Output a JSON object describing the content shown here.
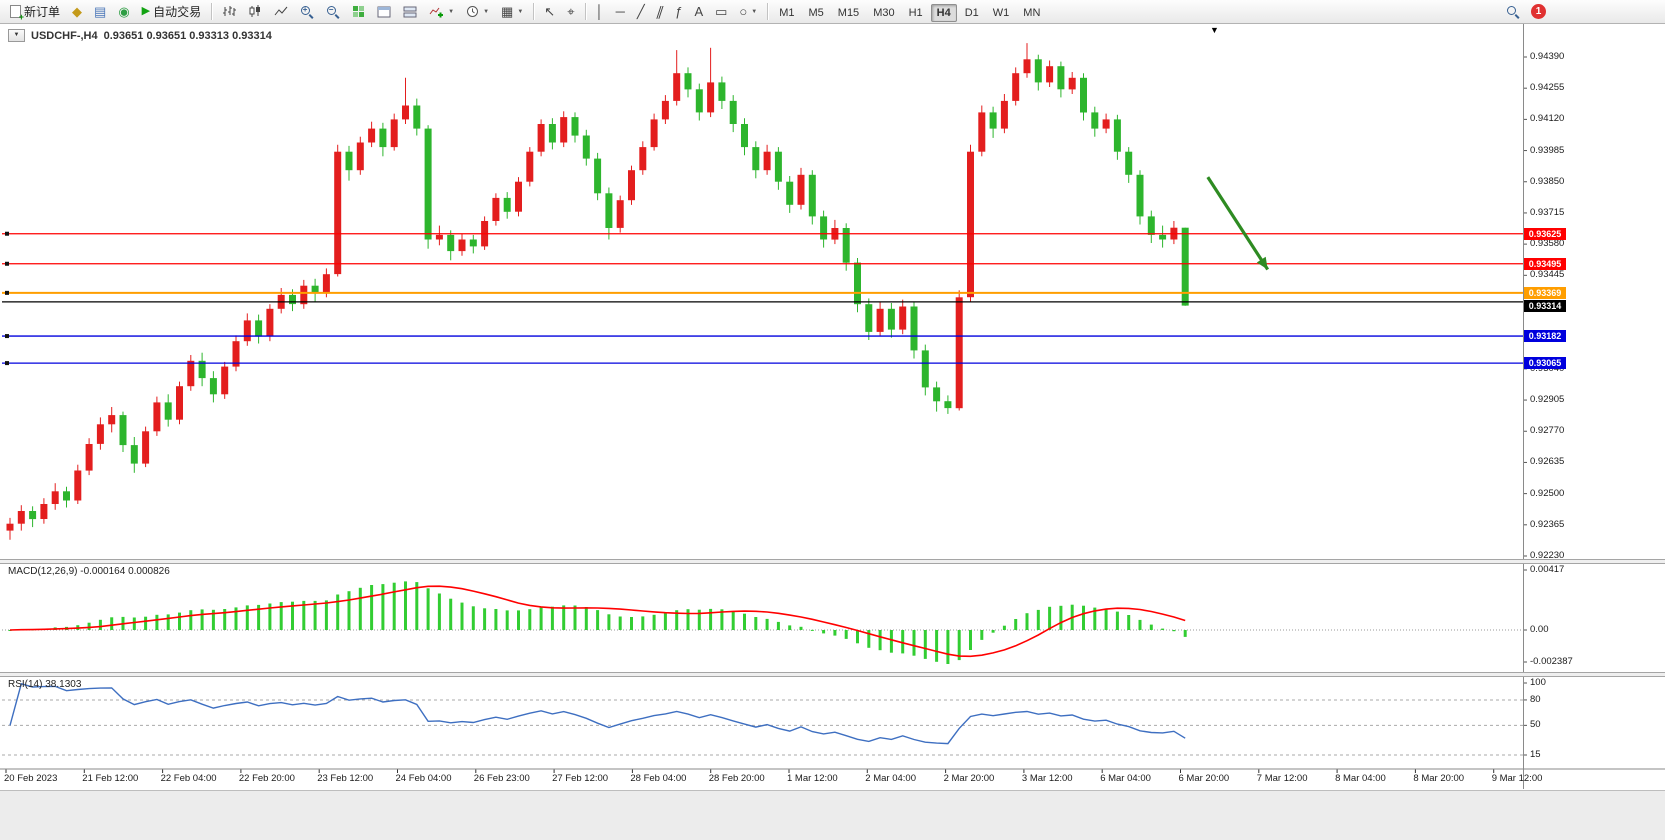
{
  "toolbar": {
    "new_order_label": "新订单",
    "auto_trading_label": "自动交易",
    "timeframes": [
      "M1",
      "M5",
      "M15",
      "M30",
      "H1",
      "H4",
      "D1",
      "W1",
      "MN"
    ],
    "active_timeframe": "H4",
    "notification_count": "1"
  },
  "chart": {
    "symbol_title": "USDCHF-,H4",
    "ohlc_text": "0.93651 0.93651 0.93313 0.93314",
    "bid": {
      "price": 0.93314,
      "label": "0.93314",
      "color": "#000000"
    },
    "hlines": [
      {
        "price": 0.93625,
        "label": "0.93625",
        "color": "#ff0000"
      },
      {
        "price": 0.93495,
        "label": "0.93495",
        "color": "#ff0000"
      },
      {
        "price": 0.93369,
        "label": "0.93369",
        "color": "#ff9e00"
      },
      {
        "price": 0.9333,
        "label": "",
        "color": "#000000"
      },
      {
        "price": 0.93182,
        "label": "0.93182",
        "color": "#0000dd"
      },
      {
        "price": 0.93065,
        "label": "0.93065",
        "color": "#0000dd"
      }
    ],
    "price_ticks": [
      "0.94390",
      "0.94255",
      "0.94120",
      "0.93985",
      "0.93850",
      "0.93715",
      "0.93580",
      "0.93445",
      "0.93310",
      "0.93175",
      "0.93040",
      "0.92905",
      "0.92770",
      "0.92635",
      "0.92500",
      "0.92365",
      "0.92230"
    ],
    "time_ticks": [
      "20 Feb 2023",
      "21 Feb 12:00",
      "22 Feb 04:00",
      "22 Feb 20:00",
      "23 Feb 12:00",
      "24 Feb 04:00",
      "26 Feb 23:00",
      "27 Feb 12:00",
      "28 Feb 04:00",
      "28 Feb 20:00",
      "1 Mar 12:00",
      "2 Mar 04:00",
      "2 Mar 20:00",
      "3 Mar 12:00",
      "6 Mar 04:00",
      "6 Mar 20:00",
      "7 Mar 12:00",
      "8 Mar 04:00",
      "8 Mar 20:00",
      "9 Mar 12:00"
    ],
    "arrow": {
      "from_bar": 106,
      "from_price": 0.9387,
      "to_bar": 111.3,
      "to_price": 0.9347,
      "color": "#2e8b22"
    }
  },
  "macd": {
    "label_text": "MACD(12,26,9)",
    "values_text": "-0.000164 0.000826",
    "axis_labels": [
      "0.00417",
      "0.00",
      "-0.002387"
    ],
    "histogram_color": "#32cd32",
    "signal_color": "#ff0000",
    "fast": 12,
    "slow": 26,
    "signal": 9
  },
  "rsi": {
    "label_text": "RSI(14)",
    "value_text": "38.1303",
    "axis_labels": [
      "100",
      "80",
      "50",
      "15"
    ],
    "levels": [
      80,
      50,
      15
    ],
    "line_color": "#3e6fc1",
    "period": 14
  },
  "chart_data": {
    "type": "candlestick",
    "symbol": "USDCHF",
    "timeframe": "H4",
    "up_color": "#e31e1e",
    "down_color": "#2db52d",
    "price_range": [
      0.9223,
      0.9439
    ],
    "candles": [
      [
        0.9234,
        0.92395,
        0.923,
        0.9237
      ],
      [
        0.9237,
        0.9245,
        0.9234,
        0.92425
      ],
      [
        0.92425,
        0.92445,
        0.92355,
        0.9239
      ],
      [
        0.9239,
        0.9248,
        0.9237,
        0.92455
      ],
      [
        0.92455,
        0.92545,
        0.9243,
        0.9251
      ],
      [
        0.9251,
        0.9253,
        0.9244,
        0.9247
      ],
      [
        0.9247,
        0.92625,
        0.92455,
        0.926
      ],
      [
        0.926,
        0.9274,
        0.9258,
        0.92715
      ],
      [
        0.92715,
        0.9283,
        0.9269,
        0.928
      ],
      [
        0.928,
        0.92875,
        0.92765,
        0.9284
      ],
      [
        0.9284,
        0.92855,
        0.9268,
        0.9271
      ],
      [
        0.9271,
        0.92745,
        0.9259,
        0.9263
      ],
      [
        0.9263,
        0.9279,
        0.92615,
        0.9277
      ],
      [
        0.9277,
        0.9292,
        0.9275,
        0.92895
      ],
      [
        0.92895,
        0.9293,
        0.9279,
        0.9282
      ],
      [
        0.9282,
        0.92985,
        0.928,
        0.92965
      ],
      [
        0.92965,
        0.931,
        0.92945,
        0.93075
      ],
      [
        0.93075,
        0.9311,
        0.92965,
        0.93
      ],
      [
        0.93,
        0.9303,
        0.92895,
        0.9293
      ],
      [
        0.9293,
        0.9307,
        0.9291,
        0.9305
      ],
      [
        0.9305,
        0.93185,
        0.9303,
        0.9316
      ],
      [
        0.9316,
        0.9328,
        0.9314,
        0.9325
      ],
      [
        0.9325,
        0.93275,
        0.9315,
        0.9318
      ],
      [
        0.9318,
        0.9332,
        0.9316,
        0.933
      ],
      [
        0.933,
        0.9339,
        0.9328,
        0.9336
      ],
      [
        0.9336,
        0.93385,
        0.9329,
        0.9332
      ],
      [
        0.9332,
        0.93425,
        0.933,
        0.934
      ],
      [
        0.934,
        0.9343,
        0.9333,
        0.9337
      ],
      [
        0.9337,
        0.93475,
        0.9335,
        0.9345
      ],
      [
        0.9345,
        0.9401,
        0.9344,
        0.9398
      ],
      [
        0.9398,
        0.94005,
        0.93855,
        0.939
      ],
      [
        0.939,
        0.94045,
        0.9388,
        0.9402
      ],
      [
        0.9402,
        0.9411,
        0.94,
        0.9408
      ],
      [
        0.9408,
        0.94105,
        0.9396,
        0.94
      ],
      [
        0.94,
        0.94145,
        0.93985,
        0.9412
      ],
      [
        0.9412,
        0.943,
        0.941,
        0.9418
      ],
      [
        0.9418,
        0.9421,
        0.9405,
        0.9408
      ],
      [
        0.9408,
        0.94095,
        0.9356,
        0.936
      ],
      [
        0.936,
        0.9366,
        0.93575,
        0.9362
      ],
      [
        0.9362,
        0.9364,
        0.9351,
        0.9355
      ],
      [
        0.9355,
        0.93625,
        0.9353,
        0.936
      ],
      [
        0.936,
        0.9362,
        0.9354,
        0.9357
      ],
      [
        0.9357,
        0.937,
        0.93555,
        0.9368
      ],
      [
        0.9368,
        0.938,
        0.9366,
        0.9378
      ],
      [
        0.9378,
        0.93805,
        0.9369,
        0.9372
      ],
      [
        0.9372,
        0.9387,
        0.937,
        0.9385
      ],
      [
        0.9385,
        0.94,
        0.9383,
        0.9398
      ],
      [
        0.9398,
        0.9412,
        0.9396,
        0.941
      ],
      [
        0.941,
        0.94125,
        0.9399,
        0.9402
      ],
      [
        0.9402,
        0.94155,
        0.94,
        0.9413
      ],
      [
        0.9413,
        0.9415,
        0.9402,
        0.9405
      ],
      [
        0.9405,
        0.94075,
        0.9392,
        0.9395
      ],
      [
        0.9395,
        0.93975,
        0.9377,
        0.938
      ],
      [
        0.938,
        0.93825,
        0.936,
        0.9365
      ],
      [
        0.9365,
        0.9379,
        0.9363,
        0.9377
      ],
      [
        0.9377,
        0.9392,
        0.9375,
        0.939
      ],
      [
        0.939,
        0.94025,
        0.9388,
        0.94
      ],
      [
        0.94,
        0.94145,
        0.93985,
        0.9412
      ],
      [
        0.9412,
        0.94225,
        0.941,
        0.942
      ],
      [
        0.942,
        0.9442,
        0.9418,
        0.9432
      ],
      [
        0.9432,
        0.94345,
        0.94215,
        0.9425
      ],
      [
        0.9425,
        0.94275,
        0.94115,
        0.9415
      ],
      [
        0.9415,
        0.9443,
        0.9413,
        0.9428
      ],
      [
        0.9428,
        0.94305,
        0.94165,
        0.942
      ],
      [
        0.942,
        0.94225,
        0.94065,
        0.941
      ],
      [
        0.941,
        0.94125,
        0.93965,
        0.94
      ],
      [
        0.94,
        0.94025,
        0.93865,
        0.939
      ],
      [
        0.939,
        0.9401,
        0.9388,
        0.9398
      ],
      [
        0.9398,
        0.94,
        0.93815,
        0.9385
      ],
      [
        0.9385,
        0.93875,
        0.93715,
        0.9375
      ],
      [
        0.9375,
        0.9391,
        0.9373,
        0.9388
      ],
      [
        0.9388,
        0.939,
        0.93665,
        0.937
      ],
      [
        0.937,
        0.93725,
        0.93565,
        0.936
      ],
      [
        0.936,
        0.93685,
        0.9358,
        0.9365
      ],
      [
        0.9365,
        0.9367,
        0.93465,
        0.935
      ],
      [
        0.935,
        0.9352,
        0.93285,
        0.9332
      ],
      [
        0.9332,
        0.93345,
        0.93165,
        0.932
      ],
      [
        0.932,
        0.9333,
        0.9318,
        0.933
      ],
      [
        0.933,
        0.93325,
        0.93175,
        0.9321
      ],
      [
        0.9321,
        0.9334,
        0.9319,
        0.9331
      ],
      [
        0.9331,
        0.9333,
        0.93085,
        0.9312
      ],
      [
        0.9312,
        0.93145,
        0.92925,
        0.9296
      ],
      [
        0.9296,
        0.92985,
        0.92855,
        0.929
      ],
      [
        0.929,
        0.92925,
        0.92845,
        0.9287
      ],
      [
        0.9287,
        0.9338,
        0.9286,
        0.9335
      ],
      [
        0.9335,
        0.9401,
        0.9333,
        0.9398
      ],
      [
        0.9398,
        0.9418,
        0.9396,
        0.9415
      ],
      [
        0.9415,
        0.94175,
        0.9404,
        0.9408
      ],
      [
        0.9408,
        0.9423,
        0.9406,
        0.942
      ],
      [
        0.942,
        0.94345,
        0.9418,
        0.9432
      ],
      [
        0.9432,
        0.9445,
        0.943,
        0.9438
      ],
      [
        0.9438,
        0.944,
        0.94245,
        0.9428
      ],
      [
        0.9428,
        0.94375,
        0.9426,
        0.9435
      ],
      [
        0.9435,
        0.9437,
        0.94215,
        0.9425
      ],
      [
        0.9425,
        0.94325,
        0.9423,
        0.943
      ],
      [
        0.943,
        0.9432,
        0.94115,
        0.9415
      ],
      [
        0.9415,
        0.94175,
        0.94045,
        0.9408
      ],
      [
        0.9408,
        0.94145,
        0.9406,
        0.9412
      ],
      [
        0.9412,
        0.9414,
        0.93945,
        0.9398
      ],
      [
        0.9398,
        0.94,
        0.93845,
        0.9388
      ],
      [
        0.9388,
        0.939,
        0.93665,
        0.937
      ],
      [
        0.937,
        0.93725,
        0.93585,
        0.9362
      ],
      [
        0.9362,
        0.9366,
        0.93565,
        0.936
      ],
      [
        0.936,
        0.9368,
        0.9358,
        0.93651
      ],
      [
        0.93651,
        0.93651,
        0.93313,
        0.93314
      ]
    ]
  }
}
